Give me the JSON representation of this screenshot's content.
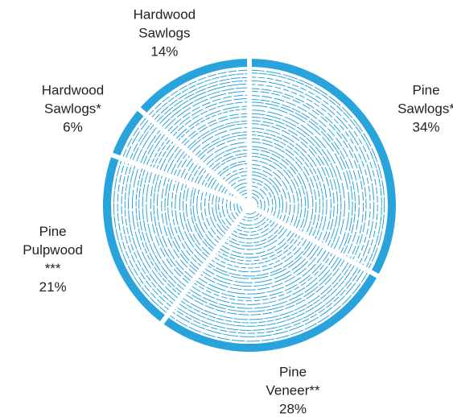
{
  "chart_data": {
    "type": "pie",
    "categories": [
      "Pine Sawlogs*",
      "Pine Veneer**",
      "Pine Pulpwood ***",
      "Hardwood Sawlogs*",
      "Hardwood Sawlogs"
    ],
    "values": [
      34,
      28,
      21,
      6,
      14
    ],
    "value_labels": [
      "34%",
      "28%",
      "21%",
      "6%",
      "14%"
    ],
    "color": "#29a3dc"
  }
}
